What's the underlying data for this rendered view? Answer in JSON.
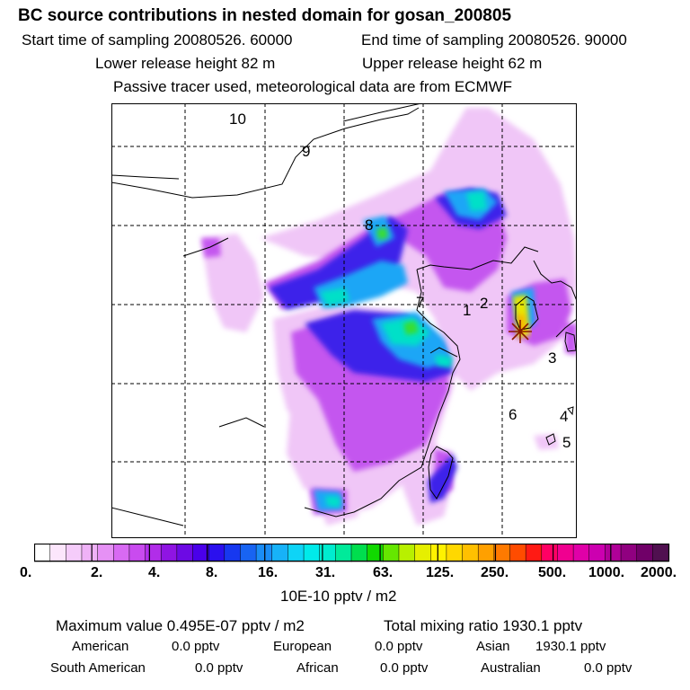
{
  "header": {
    "title": "BC  source contributions in nested domain for gosan_200805",
    "start_label": "Start time of sampling 20080526. 60000",
    "end_label": "End time of sampling 20080526. 90000",
    "lower_label": "Lower release height   82 m",
    "upper_label": "Upper release height   62 m",
    "note": "Passive tracer used, meteorological data are from ECMWF"
  },
  "map": {
    "region_labels": [
      "10",
      "9",
      "8",
      "7",
      "1",
      "2",
      "3",
      "6",
      "4",
      "5"
    ],
    "receptor_marker": "star",
    "colors": {
      "coast": "#000000",
      "grid": "#000000",
      "max_plume": "#f2e21a"
    }
  },
  "colorbar": {
    "tick_labels": [
      "0.",
      "2.",
      "4.",
      "8.",
      "16.",
      "31.",
      "63.",
      "125.",
      "250.",
      "500.",
      "1000.",
      "2000."
    ],
    "colors": [
      "#ffffff",
      "#fce6fc",
      "#f5ccfa",
      "#efb2f7",
      "#e691f5",
      "#d86af3",
      "#c94bef",
      "#b12de9",
      "#8f14e3",
      "#6d0ae4",
      "#4a00ea",
      "#2b10ee",
      "#1738f0",
      "#1864f2",
      "#1a8df6",
      "#17b2f8",
      "#0ed4f6",
      "#00eaea",
      "#00eccf",
      "#00ea9a",
      "#00de4e",
      "#11d900",
      "#65e700",
      "#b8f000",
      "#e6ef00",
      "#fff200",
      "#ffd800",
      "#ffc000",
      "#ffa000",
      "#ff7a00",
      "#ff4c00",
      "#ff1a14",
      "#ff0064",
      "#f00090",
      "#e000a8",
      "#cc00b0",
      "#b00098",
      "#900080",
      "#700068",
      "#501050"
    ],
    "unit_label": "10E-10 pptv / m2"
  },
  "footer": {
    "max_value": "Maximum value  0.495E-07 pptv / m2",
    "total": "Total mixing ratio     1930.1 pptv",
    "regions": [
      {
        "name": "American",
        "value": "0.0 pptv"
      },
      {
        "name": "European",
        "value": "0.0 pptv"
      },
      {
        "name": "Asian",
        "value": "1930.1 pptv"
      },
      {
        "name": "South American",
        "value": "0.0 pptv"
      },
      {
        "name": "African",
        "value": "0.0 pptv"
      },
      {
        "name": "Australian",
        "value": "0.0 pptv"
      }
    ]
  }
}
